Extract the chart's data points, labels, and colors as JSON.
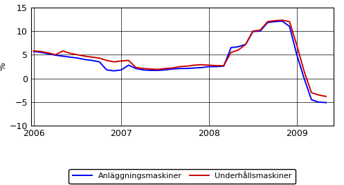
{
  "title": "",
  "ylabel": "%",
  "ylim": [
    -10,
    15
  ],
  "yticks": [
    -10,
    -5,
    0,
    5,
    10,
    15
  ],
  "xlabel": "",
  "legend": [
    "Anläggningsmaskiner",
    "Underhållsmaskiner"
  ],
  "line_colors": [
    "#0000ff",
    "#cc0000"
  ],
  "line_width": 1.4,
  "background_color": "#ffffff",
  "n_months": 41,
  "x_start": 2006.0,
  "anlaggning": [
    5.7,
    5.5,
    5.2,
    4.9,
    4.7,
    4.5,
    4.3,
    4.0,
    3.8,
    3.5,
    1.8,
    1.6,
    1.8,
    2.8,
    2.1,
    1.8,
    1.7,
    1.7,
    1.8,
    2.0,
    2.1,
    2.1,
    2.2,
    2.3,
    2.5,
    2.5,
    2.6,
    6.5,
    6.7,
    7.2,
    9.9,
    10.0,
    11.8,
    12.0,
    12.1,
    11.0,
    5.0,
    0.0,
    -4.5,
    -5.0,
    -5.1
  ],
  "underhall": [
    5.8,
    5.7,
    5.4,
    5.0,
    5.8,
    5.3,
    5.0,
    4.7,
    4.5,
    4.3,
    3.8,
    3.5,
    3.7,
    3.8,
    2.3,
    2.1,
    2.0,
    1.9,
    2.1,
    2.2,
    2.5,
    2.6,
    2.8,
    2.9,
    2.8,
    2.7,
    2.7,
    5.5,
    6.0,
    7.2,
    10.0,
    10.2,
    12.0,
    12.2,
    12.3,
    12.0,
    7.0,
    1.5,
    -3.0,
    -3.5,
    -3.8
  ],
  "year_ticks": [
    2006,
    2007,
    2008,
    2009
  ],
  "xlim_left": 2005.97,
  "xlim_right": 2009.42
}
